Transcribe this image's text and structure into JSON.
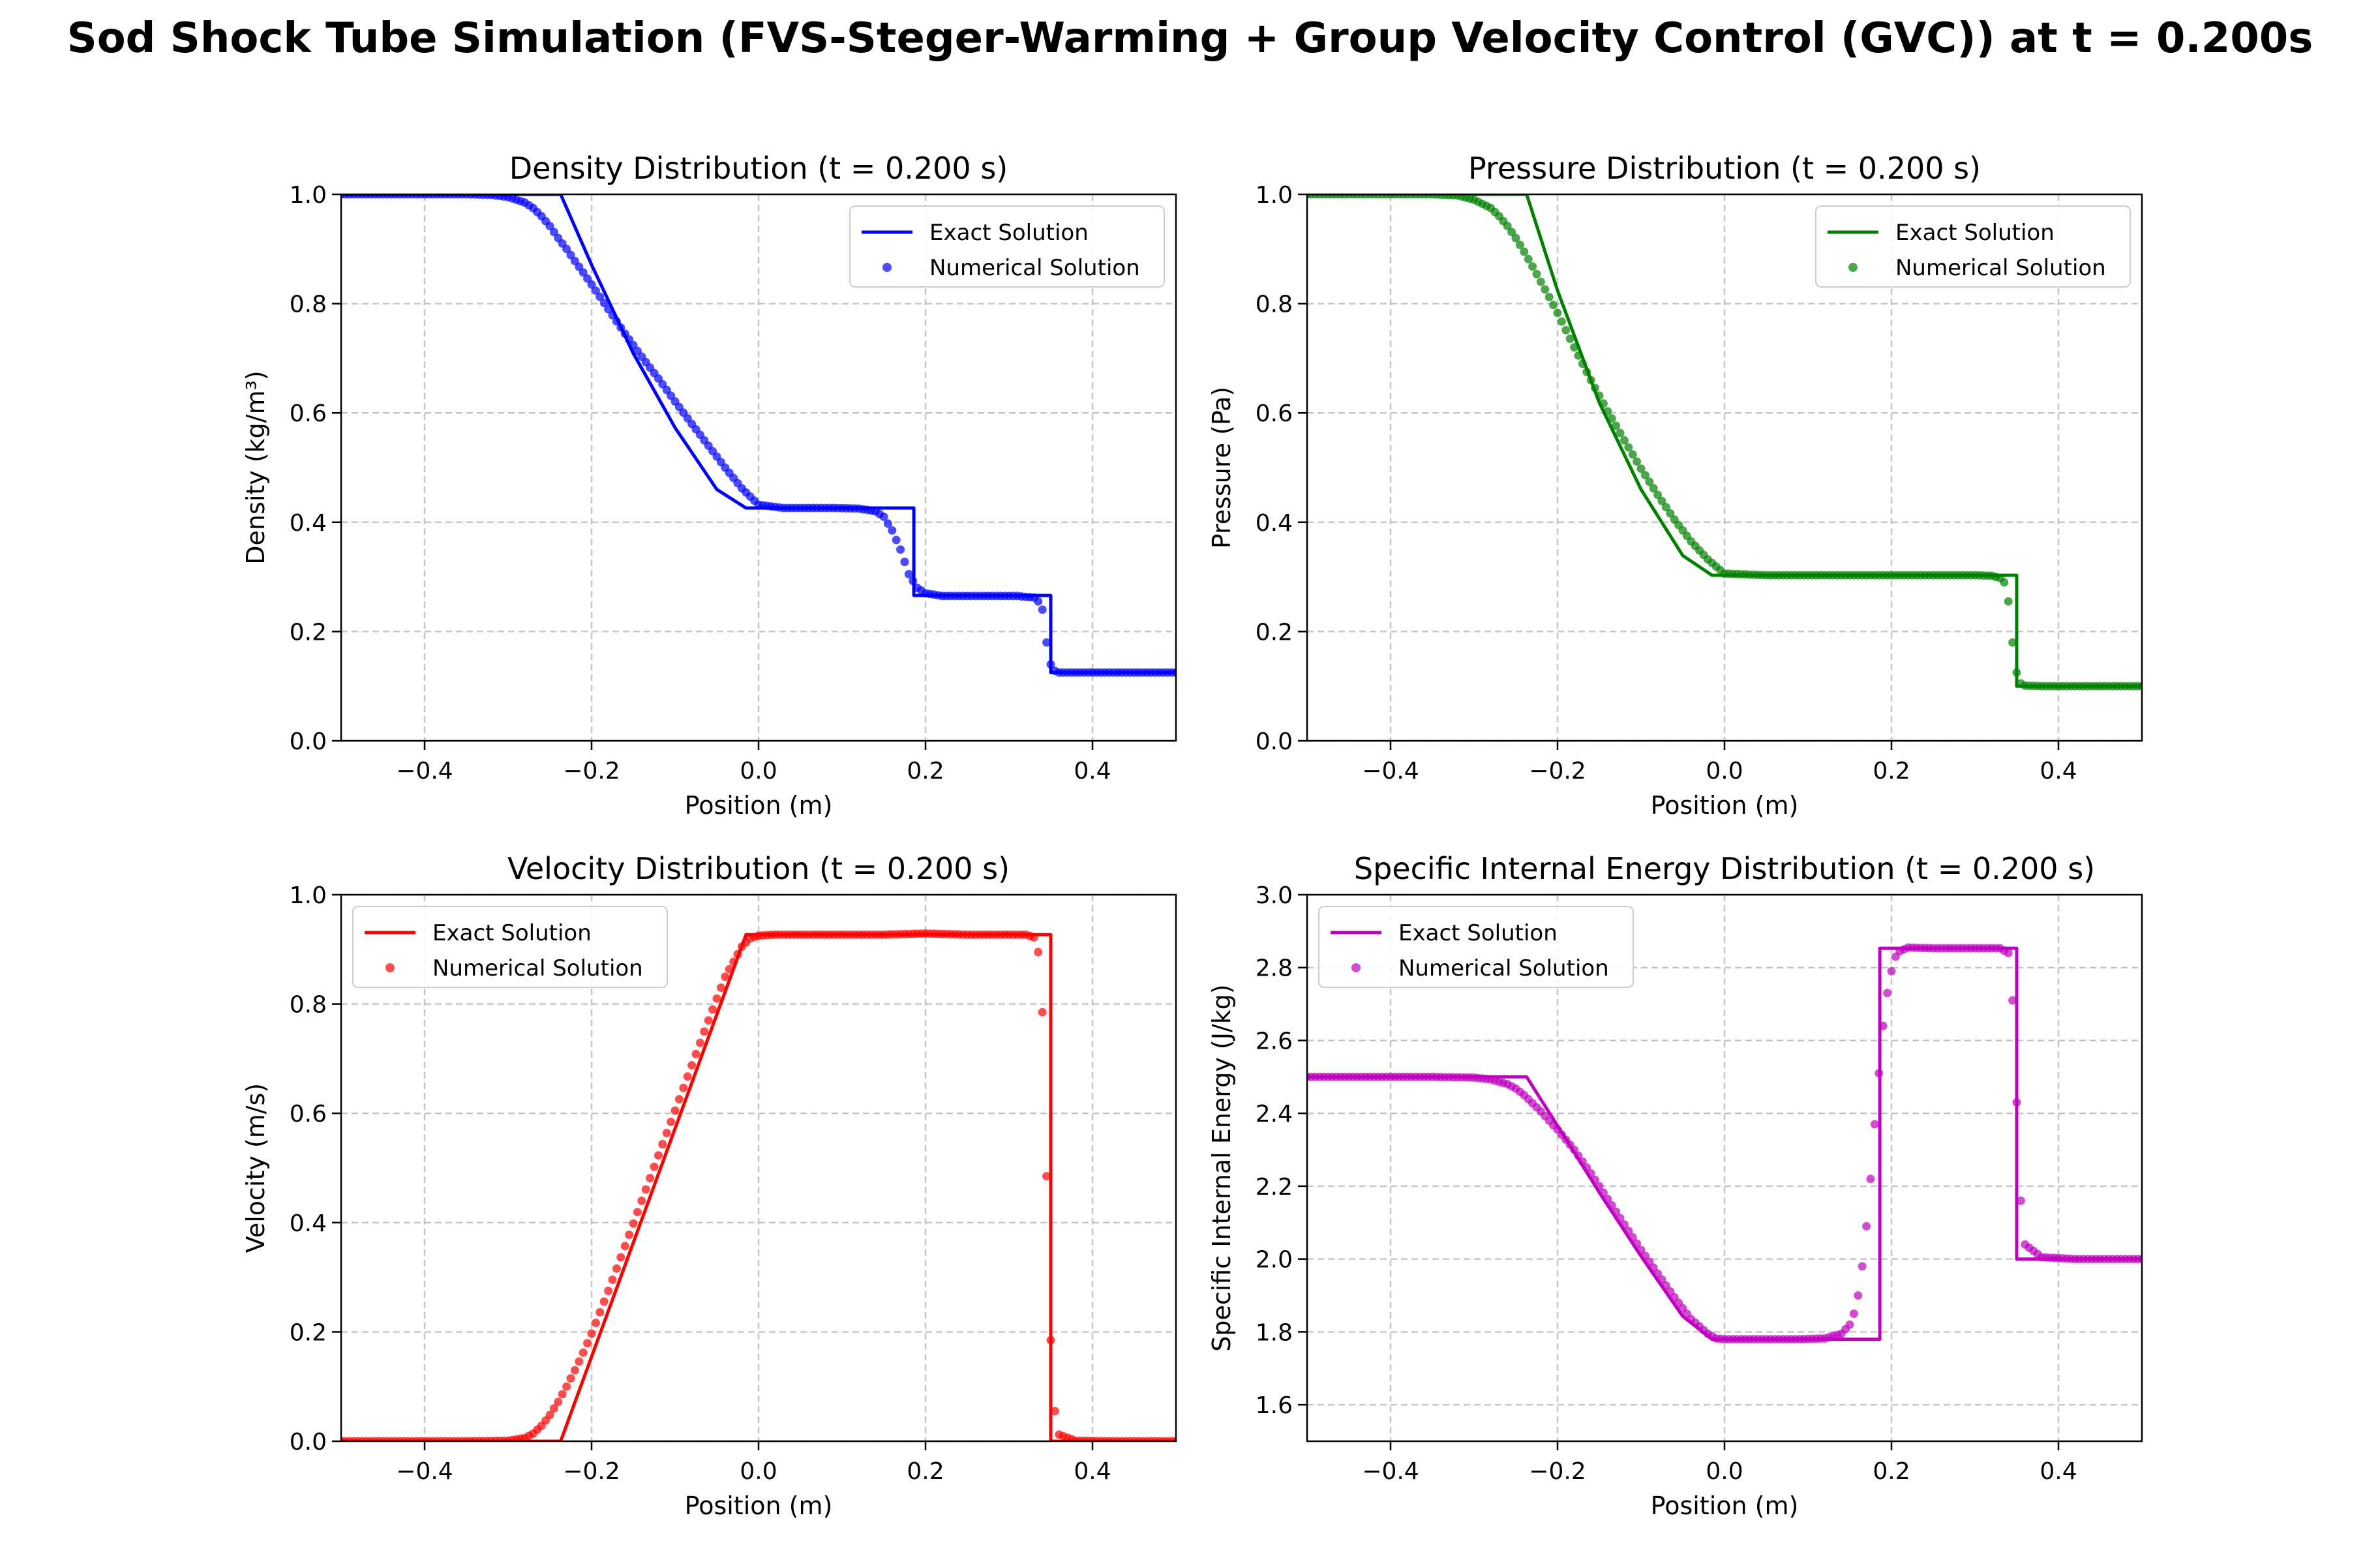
{
  "figure": {
    "suptitle": "Sod Shock Tube Simulation (FVS-Steger-Warming + Group Velocity Control (GVC)) at t = 0.200s"
  },
  "chart_data": [
    {
      "type": "line",
      "title": "Density Distribution (t = 0.200 s)",
      "xlabel": "Position (m)",
      "ylabel": "Density (kg/m³)",
      "xlim": [
        -0.5,
        0.5
      ],
      "ylim": [
        0.0,
        1.0
      ],
      "xticks": [
        -0.4,
        -0.2,
        0.0,
        0.2,
        0.4
      ],
      "yticks": [
        0.0,
        0.2,
        0.4,
        0.6,
        0.8,
        1.0
      ],
      "grid": true,
      "legend": "top-right",
      "color": "#0000ff",
      "series": [
        {
          "name": "Exact Solution",
          "style": "line",
          "x": [
            -0.5,
            -0.237,
            -0.2,
            -0.15,
            -0.1,
            -0.05,
            -0.015,
            0.186,
            0.186,
            0.35,
            0.35,
            0.5
          ],
          "y": [
            1.0,
            1.0,
            0.871,
            0.709,
            0.573,
            0.46,
            0.426,
            0.426,
            0.266,
            0.266,
            0.125,
            0.125
          ]
        },
        {
          "name": "Numerical Solution",
          "style": "markers",
          "x": [
            -0.5,
            -0.45,
            -0.4,
            -0.35,
            -0.32,
            -0.3,
            -0.28,
            -0.27,
            -0.26,
            -0.25,
            -0.24,
            -0.23,
            -0.22,
            -0.21,
            -0.2,
            -0.18,
            -0.16,
            -0.14,
            -0.12,
            -0.1,
            -0.08,
            -0.06,
            -0.04,
            -0.02,
            0.0,
            0.03,
            0.06,
            0.09,
            0.12,
            0.14,
            0.15,
            0.16,
            0.17,
            0.18,
            0.19,
            0.2,
            0.22,
            0.25,
            0.28,
            0.31,
            0.33,
            0.335,
            0.34,
            0.345,
            0.35,
            0.355,
            0.36,
            0.38,
            0.42,
            0.46,
            0.5
          ],
          "y": [
            1.0,
            1.0,
            1.0,
            1.0,
            0.999,
            0.995,
            0.985,
            0.975,
            0.96,
            0.942,
            0.92,
            0.9,
            0.878,
            0.857,
            0.835,
            0.79,
            0.745,
            0.703,
            0.663,
            0.621,
            0.58,
            0.54,
            0.5,
            0.462,
            0.432,
            0.426,
            0.426,
            0.426,
            0.425,
            0.42,
            0.41,
            0.385,
            0.35,
            0.305,
            0.28,
            0.27,
            0.265,
            0.265,
            0.265,
            0.265,
            0.262,
            0.255,
            0.24,
            0.18,
            0.14,
            0.128,
            0.125,
            0.125,
            0.125,
            0.125,
            0.125
          ]
        }
      ]
    },
    {
      "type": "line",
      "title": "Pressure Distribution (t = 0.200 s)",
      "xlabel": "Position (m)",
      "ylabel": "Pressure (Pa)",
      "xlim": [
        -0.5,
        0.5
      ],
      "ylim": [
        0.0,
        1.0
      ],
      "xticks": [
        -0.4,
        -0.2,
        0.0,
        0.2,
        0.4
      ],
      "yticks": [
        0.0,
        0.2,
        0.4,
        0.6,
        0.8,
        1.0
      ],
      "grid": true,
      "legend": "top-right",
      "color": "#008000",
      "series": [
        {
          "name": "Exact Solution",
          "style": "line",
          "x": [
            -0.5,
            -0.237,
            -0.2,
            -0.15,
            -0.1,
            -0.05,
            -0.015,
            0.35,
            0.35,
            0.5
          ],
          "y": [
            1.0,
            1.0,
            0.824,
            0.619,
            0.46,
            0.339,
            0.303,
            0.303,
            0.1,
            0.1
          ]
        },
        {
          "name": "Numerical Solution",
          "style": "markers",
          "x": [
            -0.5,
            -0.45,
            -0.4,
            -0.35,
            -0.32,
            -0.3,
            -0.28,
            -0.27,
            -0.26,
            -0.25,
            -0.24,
            -0.23,
            -0.22,
            -0.21,
            -0.2,
            -0.18,
            -0.16,
            -0.14,
            -0.12,
            -0.1,
            -0.08,
            -0.06,
            -0.04,
            -0.02,
            0.0,
            0.05,
            0.1,
            0.15,
            0.2,
            0.25,
            0.3,
            0.32,
            0.33,
            0.335,
            0.34,
            0.345,
            0.35,
            0.355,
            0.36,
            0.38,
            0.42,
            0.46,
            0.5
          ],
          "y": [
            1.0,
            1.0,
            1.0,
            1.0,
            0.998,
            0.99,
            0.975,
            0.96,
            0.942,
            0.92,
            0.895,
            0.868,
            0.84,
            0.812,
            0.783,
            0.72,
            0.66,
            0.603,
            0.55,
            0.498,
            0.45,
            0.405,
            0.365,
            0.332,
            0.306,
            0.303,
            0.303,
            0.303,
            0.303,
            0.303,
            0.303,
            0.302,
            0.298,
            0.29,
            0.255,
            0.18,
            0.125,
            0.105,
            0.101,
            0.1,
            0.1,
            0.1,
            0.1
          ]
        }
      ]
    },
    {
      "type": "line",
      "title": "Velocity Distribution (t = 0.200 s)",
      "xlabel": "Position (m)",
      "ylabel": "Velocity (m/s)",
      "xlim": [
        -0.5,
        0.5
      ],
      "ylim": [
        0.0,
        1.0
      ],
      "xticks": [
        -0.4,
        -0.2,
        0.0,
        0.2,
        0.4
      ],
      "yticks": [
        0.0,
        0.2,
        0.4,
        0.6,
        0.8,
        1.0
      ],
      "grid": true,
      "legend": "top-left",
      "color": "#ff0000",
      "series": [
        {
          "name": "Exact Solution",
          "style": "line",
          "x": [
            -0.5,
            -0.237,
            -0.015,
            0.35,
            0.35,
            0.5
          ],
          "y": [
            0.0,
            0.0,
            0.927,
            0.927,
            0.0,
            0.0
          ]
        },
        {
          "name": "Numerical Solution",
          "style": "markers",
          "x": [
            -0.5,
            -0.45,
            -0.4,
            -0.35,
            -0.3,
            -0.28,
            -0.27,
            -0.26,
            -0.25,
            -0.24,
            -0.23,
            -0.22,
            -0.21,
            -0.2,
            -0.18,
            -0.16,
            -0.14,
            -0.12,
            -0.1,
            -0.08,
            -0.06,
            -0.04,
            -0.02,
            -0.01,
            0.0,
            0.02,
            0.05,
            0.1,
            0.15,
            0.2,
            0.25,
            0.3,
            0.32,
            0.33,
            0.335,
            0.34,
            0.345,
            0.35,
            0.355,
            0.36,
            0.38,
            0.42,
            0.46,
            0.5
          ],
          "y": [
            0.0,
            0.0,
            0.0,
            0.0,
            0.001,
            0.006,
            0.014,
            0.028,
            0.048,
            0.072,
            0.1,
            0.13,
            0.162,
            0.197,
            0.275,
            0.357,
            0.44,
            0.523,
            0.605,
            0.688,
            0.77,
            0.85,
            0.905,
            0.92,
            0.925,
            0.927,
            0.927,
            0.927,
            0.927,
            0.929,
            0.927,
            0.927,
            0.927,
            0.922,
            0.895,
            0.785,
            0.485,
            0.185,
            0.055,
            0.012,
            0.001,
            0.0,
            0.0,
            0.0
          ]
        }
      ]
    },
    {
      "type": "line",
      "title": "Specific Internal Energy Distribution (t = 0.200 s)",
      "xlabel": "Position (m)",
      "ylabel": "Specific Internal Energy (J/kg)",
      "xlim": [
        -0.5,
        0.5
      ],
      "ylim": [
        1.5,
        3.0
      ],
      "xticks": [
        -0.4,
        -0.2,
        0.0,
        0.2,
        0.4
      ],
      "yticks": [
        1.6,
        1.8,
        2.0,
        2.2,
        2.4,
        2.6,
        2.8,
        3.0
      ],
      "grid": true,
      "legend": "top-left",
      "color": "#bf00bf",
      "series": [
        {
          "name": "Exact Solution",
          "style": "line",
          "x": [
            -0.5,
            -0.237,
            -0.2,
            -0.15,
            -0.1,
            -0.05,
            -0.015,
            0.186,
            0.186,
            0.35,
            0.35,
            0.5
          ],
          "y": [
            2.5,
            2.5,
            2.366,
            2.183,
            2.008,
            1.843,
            1.78,
            1.78,
            2.853,
            2.853,
            2.0,
            2.0
          ]
        },
        {
          "name": "Numerical Solution",
          "style": "markers",
          "x": [
            -0.5,
            -0.45,
            -0.4,
            -0.35,
            -0.3,
            -0.28,
            -0.26,
            -0.25,
            -0.24,
            -0.23,
            -0.22,
            -0.21,
            -0.2,
            -0.18,
            -0.16,
            -0.14,
            -0.12,
            -0.1,
            -0.08,
            -0.06,
            -0.04,
            -0.02,
            -0.01,
            0.0,
            0.03,
            0.06,
            0.09,
            0.12,
            0.14,
            0.15,
            0.155,
            0.16,
            0.165,
            0.17,
            0.175,
            0.18,
            0.185,
            0.19,
            0.195,
            0.2,
            0.205,
            0.21,
            0.22,
            0.25,
            0.28,
            0.31,
            0.33,
            0.34,
            0.345,
            0.35,
            0.355,
            0.36,
            0.38,
            0.42,
            0.46,
            0.5
          ],
          "y": [
            2.5,
            2.5,
            2.5,
            2.5,
            2.498,
            2.493,
            2.48,
            2.468,
            2.45,
            2.428,
            2.405,
            2.38,
            2.355,
            2.3,
            2.235,
            2.165,
            2.095,
            2.025,
            1.96,
            1.895,
            1.835,
            1.795,
            1.782,
            1.78,
            1.78,
            1.78,
            1.78,
            1.782,
            1.795,
            1.82,
            1.85,
            1.9,
            1.98,
            2.09,
            2.22,
            2.37,
            2.51,
            2.64,
            2.73,
            2.79,
            2.83,
            2.845,
            2.855,
            2.853,
            2.853,
            2.853,
            2.853,
            2.84,
            2.71,
            2.43,
            2.16,
            2.04,
            2.005,
            2.0,
            2.0,
            2.0
          ]
        }
      ]
    }
  ]
}
